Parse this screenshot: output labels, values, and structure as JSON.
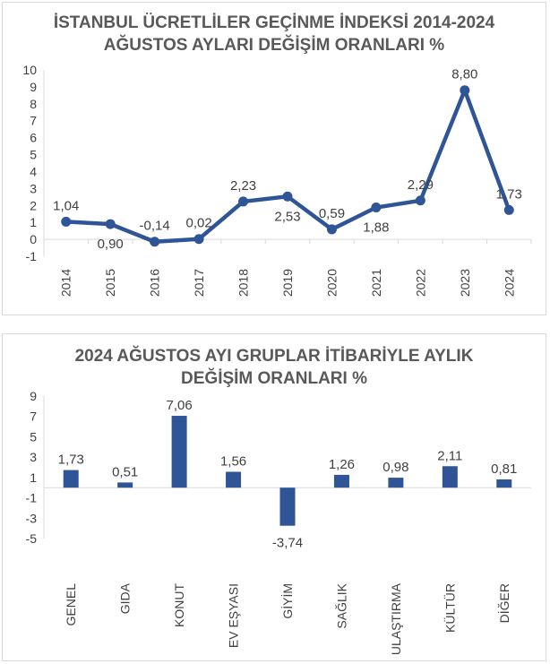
{
  "chart_data": [
    {
      "type": "line",
      "title": [
        "İSTANBUL ÜCRETLİLER GEÇİNME İNDEKSİ 2014-2024",
        "AĞUSTOS AYLARI DEĞİŞİM ORANLARI %"
      ],
      "categories": [
        "2014",
        "2015",
        "2016",
        "2017",
        "2018",
        "2019",
        "2020",
        "2021",
        "2022",
        "2023",
        "2024"
      ],
      "values": [
        1.04,
        0.9,
        -0.14,
        0.02,
        2.23,
        2.53,
        0.59,
        1.88,
        2.29,
        8.8,
        1.73
      ],
      "data_labels": [
        "1,04",
        "0,90",
        "-0,14",
        "0,02",
        "2,23",
        "2,53",
        "0,59",
        "1,88",
        "2,29",
        "8,80",
        "1,73"
      ],
      "label_positions": [
        "above",
        "below",
        "above",
        "above",
        "above",
        "below",
        "above",
        "below",
        "above",
        "above",
        "above"
      ],
      "yticks": [
        10,
        9,
        8,
        7,
        6,
        5,
        4,
        3,
        2,
        1,
        0,
        -1
      ],
      "ylim": [
        -1,
        10
      ],
      "xlabel": "",
      "ylabel": "",
      "grid": false,
      "legend": "none",
      "color": "#2f5597"
    },
    {
      "type": "bar",
      "title": [
        "2024 AĞUSTOS AYI GRUPLAR İTİBARİYLE AYLIK",
        "DEĞİŞİM ORANLARI %"
      ],
      "categories": [
        "GENEL",
        "GIDA",
        "KONUT",
        "EV EŞYASI",
        "GİYİM",
        "SAĞLIK",
        "ULAŞTIRMA",
        "KÜLTÜR",
        "DİĞER"
      ],
      "values": [
        1.73,
        0.51,
        7.06,
        1.56,
        -3.74,
        1.26,
        0.98,
        2.11,
        0.81
      ],
      "data_labels": [
        "1,73",
        "0,51",
        "7,06",
        "1,56",
        "-3,74",
        "1,26",
        "0,98",
        "2,11",
        "0,81"
      ],
      "yticks": [
        9,
        7,
        5,
        3,
        1,
        -1,
        -3,
        -5
      ],
      "ylim": [
        -5,
        9
      ],
      "xlabel": "",
      "ylabel": "",
      "grid": false,
      "legend": "none",
      "color": "#2f5597"
    }
  ]
}
